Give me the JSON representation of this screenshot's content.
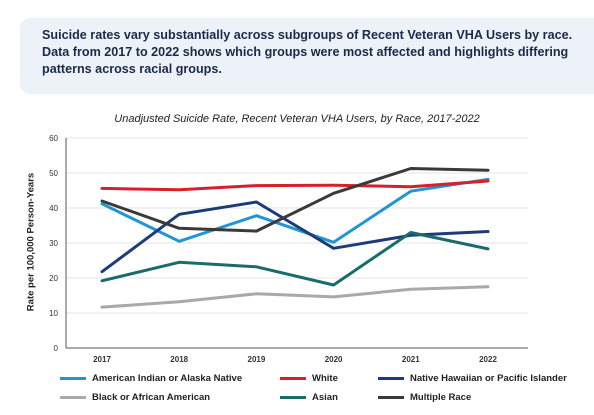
{
  "callout": {
    "text": "Suicide rates vary substantially across subgroups of Recent Veteran VHA Users by race. Data from 2017 to 2022 shows which groups were most affected and highlights differing patterns across racial groups."
  },
  "chart_data": {
    "type": "line",
    "title": "Unadjusted Suicide Rate, Recent Veteran VHA Users, by Race, 2017-2022",
    "xlabel": "",
    "ylabel": "Rate per 100,000 Person-Years",
    "x": [
      "2017",
      "2018",
      "2019",
      "2020",
      "2021",
      "2022"
    ],
    "ylim": [
      0,
      60
    ],
    "yticks": [
      0,
      10,
      20,
      30,
      40,
      50,
      60
    ],
    "grid": "horizontal",
    "legend_position": "bottom",
    "series": [
      {
        "name": "American Indian or Alaska Native",
        "color": "#1f96d3",
        "values": [
          41.2,
          30.5,
          37.8,
          30.2,
          44.8,
          48.2
        ]
      },
      {
        "name": "White",
        "color": "#d7202a",
        "values": [
          45.6,
          45.2,
          46.4,
          46.5,
          46.1,
          47.7
        ]
      },
      {
        "name": "Native Hawaiian or Pacific Islander",
        "color": "#1b3c7a",
        "values": [
          21.8,
          38.2,
          41.7,
          28.5,
          32.2,
          33.3
        ]
      },
      {
        "name": "Black or African American",
        "color": "#a7a9ac",
        "values": [
          11.7,
          13.2,
          15.5,
          14.6,
          16.8,
          17.5
        ]
      },
      {
        "name": "Asian",
        "color": "#1a6b6b",
        "values": [
          19.2,
          24.5,
          23.2,
          18.0,
          33.0,
          28.3
        ]
      },
      {
        "name": "Multiple Race",
        "color": "#3a3a3a",
        "values": [
          42.0,
          34.2,
          33.4,
          44.2,
          51.3,
          50.8
        ]
      }
    ]
  }
}
